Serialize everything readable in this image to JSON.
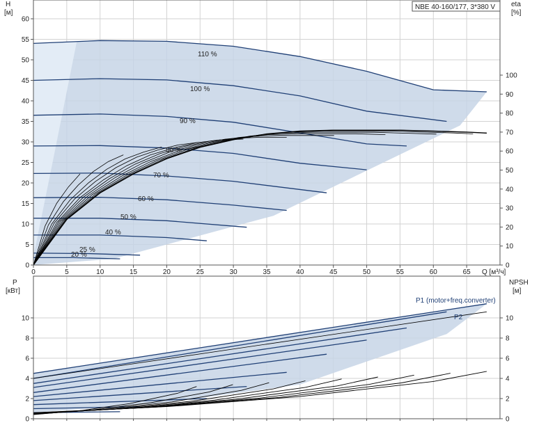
{
  "title_box": "NBE 40-160/177, 3*380 V",
  "top_chart": {
    "y_left_label": [
      "H",
      "[м]"
    ],
    "y_right_label": [
      "eta",
      "[%]"
    ],
    "x_label": "Q [м³/ч]",
    "x_ticks": [
      0,
      5,
      10,
      15,
      20,
      25,
      30,
      35,
      40,
      45,
      50,
      55,
      60,
      65
    ],
    "y_left_ticks": [
      0,
      5,
      10,
      15,
      20,
      25,
      30,
      35,
      40,
      45,
      50,
      55,
      60
    ],
    "y_right_ticks": [
      0,
      10,
      20,
      30,
      40,
      50,
      60,
      70,
      80,
      90,
      100
    ]
  },
  "bottom_chart": {
    "y_left_label": [
      "P",
      "[кВт]"
    ],
    "y_right_label": [
      "NPSH",
      "[м]"
    ],
    "y_left_ticks": [
      0,
      2,
      4,
      6,
      8,
      10
    ],
    "y_right_ticks": [
      0,
      2,
      4,
      6,
      8,
      10
    ],
    "labels": {
      "p1": "P1 (motor+freq.converter)",
      "p2": "P2"
    }
  },
  "chart_data": [
    {
      "type": "line",
      "title": "NBE 40-160/177, 3*380 V",
      "xlabel": "Q [м³/ч]",
      "ylabel": "H [м]",
      "ylabel_right": "eta [%]",
      "xlim": [
        0,
        70
      ],
      "ylim": [
        0,
        65
      ],
      "ylim_right": [
        0,
        130
      ],
      "grid": true,
      "series": [
        {
          "name": "110 %",
          "x": [
            0,
            10,
            20,
            30,
            40,
            50,
            60,
            68
          ],
          "y": [
            54,
            54.7,
            54.5,
            53.3,
            50.8,
            47.2,
            42.7,
            42.2
          ]
        },
        {
          "name": "100 %",
          "x": [
            0,
            10,
            20,
            30,
            40,
            50,
            62
          ],
          "y": [
            45,
            45.4,
            45.1,
            43.7,
            41.2,
            37.5,
            35
          ]
        },
        {
          "name": "90 %",
          "x": [
            0,
            10,
            20,
            30,
            40,
            50,
            56
          ],
          "y": [
            36.5,
            36.8,
            36.2,
            34.8,
            32.2,
            29.5,
            29
          ]
        },
        {
          "name": "80 %",
          "x": [
            0,
            10,
            20,
            30,
            40,
            50
          ],
          "y": [
            29,
            29.1,
            28.5,
            27.2,
            24.8,
            23.2
          ]
        },
        {
          "name": "70 %",
          "x": [
            0,
            10,
            20,
            30,
            44
          ],
          "y": [
            22.3,
            22.4,
            21.7,
            20.4,
            17.6
          ]
        },
        {
          "name": "60 %",
          "x": [
            0,
            10,
            20,
            30,
            38
          ],
          "y": [
            16.4,
            16.5,
            15.9,
            14.6,
            13.3
          ]
        },
        {
          "name": "50 %",
          "x": [
            0,
            10,
            20,
            32
          ],
          "y": [
            11.4,
            11.4,
            10.8,
            9.2
          ]
        },
        {
          "name": "40 %",
          "x": [
            0,
            10,
            20,
            26
          ],
          "y": [
            7.3,
            7.3,
            6.7,
            5.9
          ]
        },
        {
          "name": "25 %",
          "x": [
            0,
            8,
            16
          ],
          "y": [
            2.9,
            2.8,
            2.4
          ]
        },
        {
          "name": "20 %",
          "x": [
            0,
            6,
            13
          ],
          "y": [
            1.8,
            1.8,
            1.5
          ]
        }
      ],
      "efficiency": {
        "name": "eta",
        "x": [
          0,
          5,
          10,
          15,
          20,
          25,
          30,
          35,
          40,
          45,
          50,
          55,
          60,
          65,
          68
        ],
        "y": [
          0,
          24,
          38,
          48,
          56,
          62,
          66,
          69,
          70.5,
          71,
          71,
          71,
          70.5,
          70,
          69.5
        ]
      }
    },
    {
      "type": "line",
      "xlabel": "Q [м³/ч]",
      "ylabel": "P [кВт]",
      "ylabel_right": "NPSH [м]",
      "xlim": [
        0,
        70
      ],
      "ylim": [
        0,
        12.5
      ],
      "ylim_right": [
        0,
        12.5
      ],
      "grid": true,
      "series": [
        {
          "name": "P1 (motor+freq.converter)",
          "x": [
            0,
            68
          ],
          "y": [
            4.5,
            11.4
          ]
        },
        {
          "name": "P2",
          "x": [
            0,
            68
          ],
          "y": [
            4.0,
            10.6
          ]
        },
        {
          "name": "NPSH",
          "x": [
            0,
            20,
            40,
            60,
            68
          ],
          "y": [
            0.6,
            1.2,
            2.2,
            3.7,
            4.7
          ]
        }
      ]
    }
  ]
}
